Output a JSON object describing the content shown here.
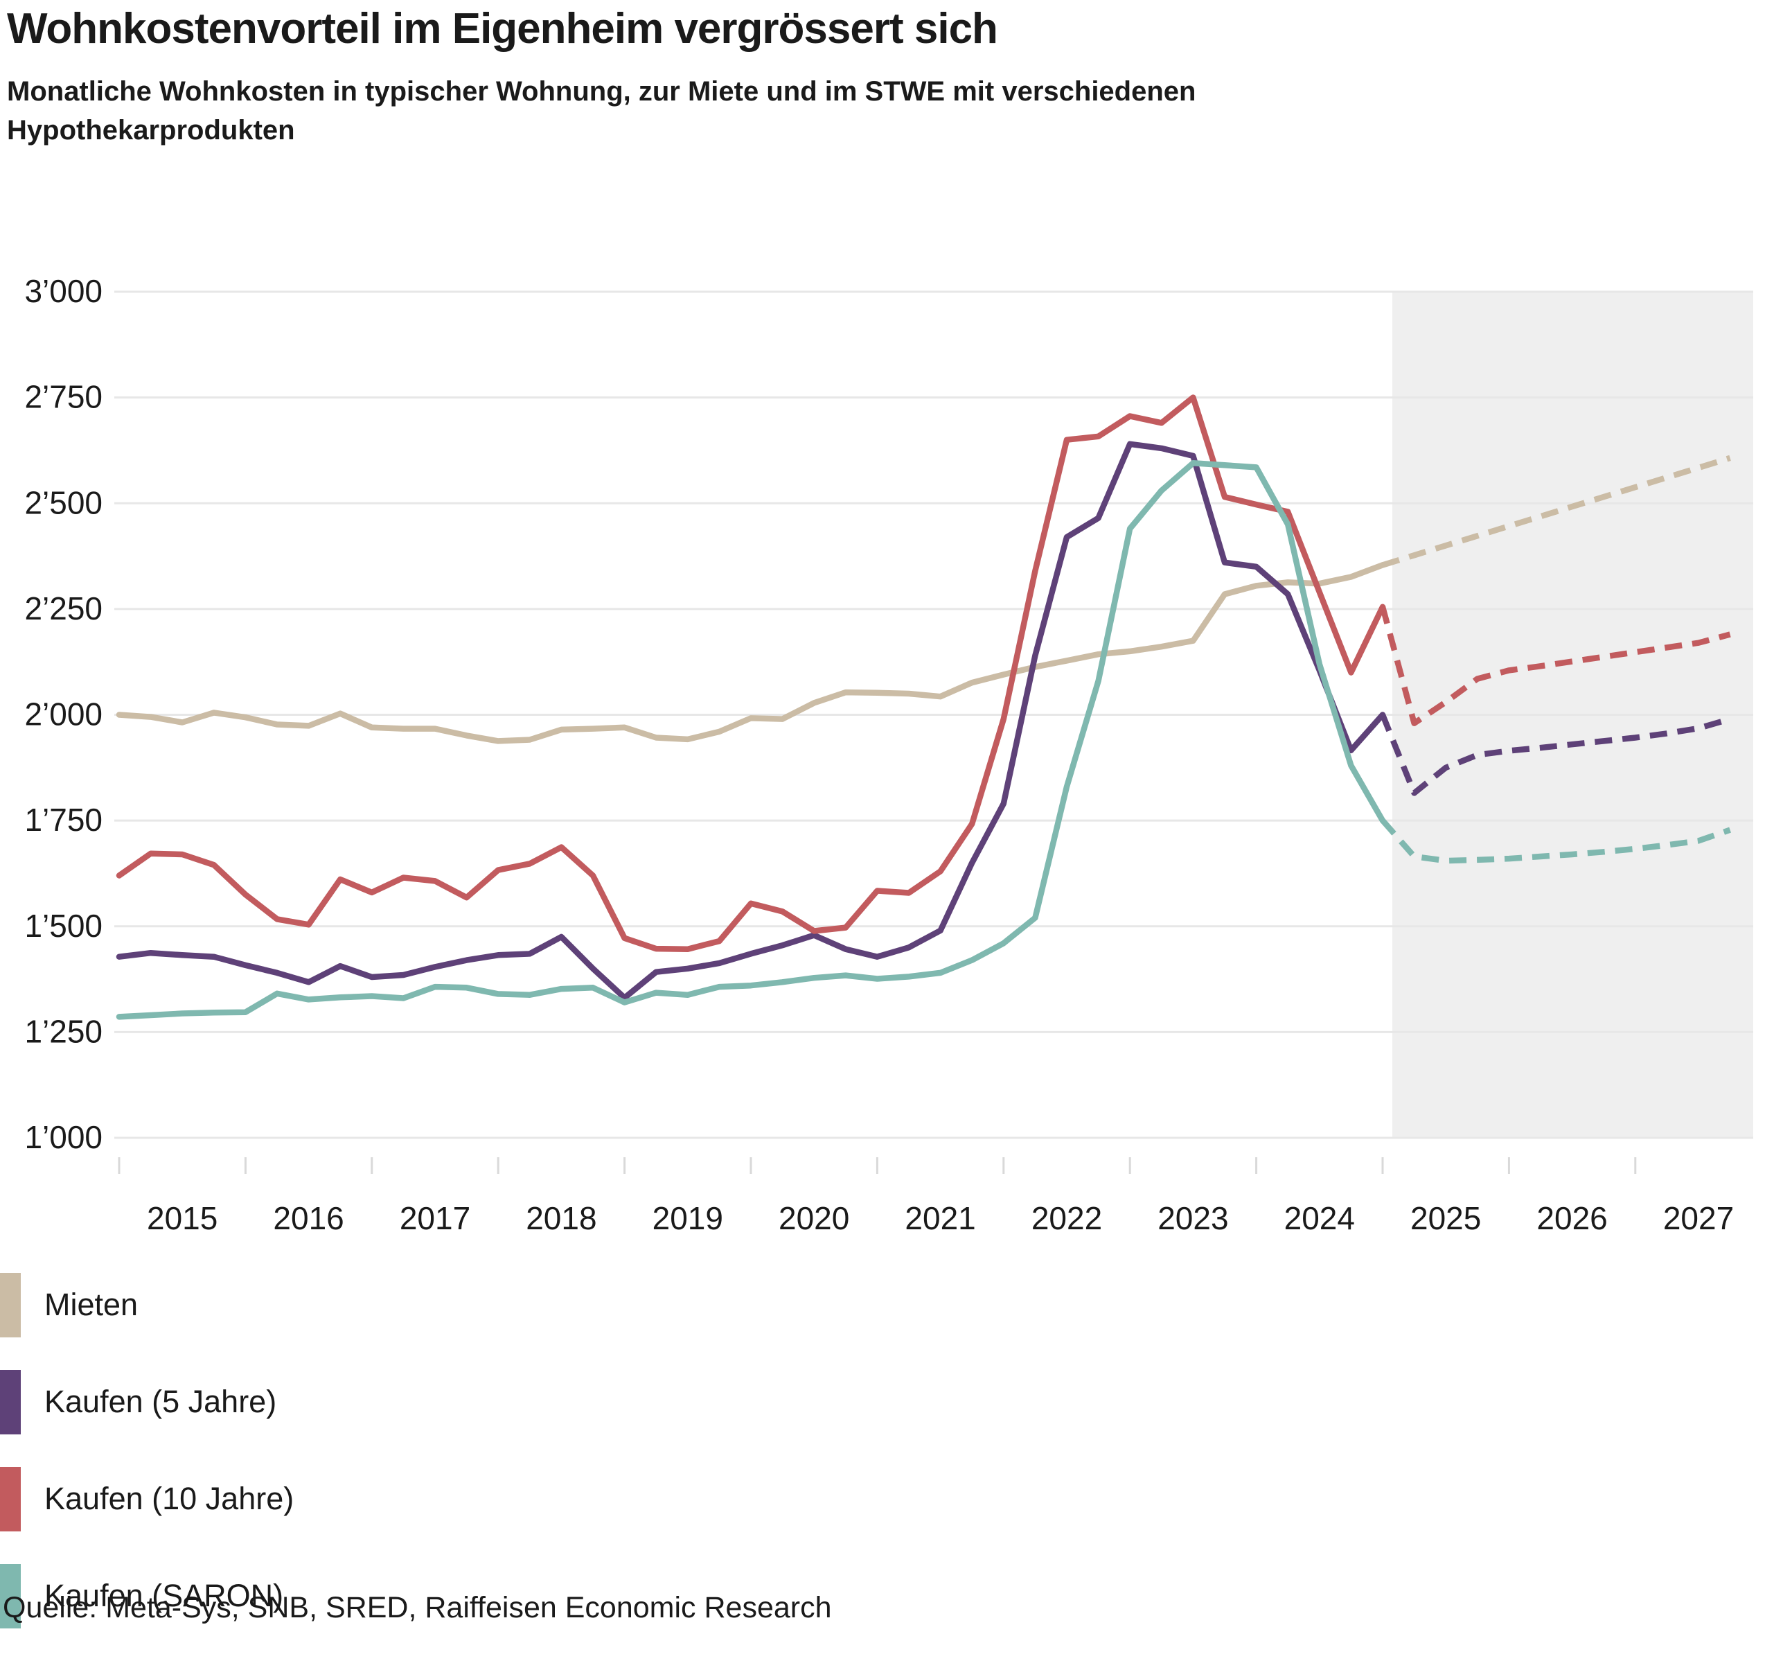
{
  "header": {
    "title": "Wohnkostenvorteil im Eigenheim vergrössert sich",
    "subtitle_line1": "Monatliche Wohnkosten in typischer Wohnung, zur Miete und im STWE mit verschiedenen",
    "subtitle_line2": "Hypothekarprodukten"
  },
  "chart_data": {
    "type": "line",
    "title": "Wohnkostenvorteil im Eigenheim vergrössert sich",
    "xlabel": "",
    "ylabel": "",
    "x_start": 2015,
    "x_step_years": 0.25,
    "ylim": [
      1000,
      3000
    ],
    "grid": true,
    "legend_position": "bottom-left",
    "forecast_band_color": "#efefef",
    "forecast_start_index": 40,
    "yticks": [
      {
        "value": 3000,
        "label": "3’000"
      },
      {
        "value": 2750,
        "label": "2’750"
      },
      {
        "value": 2500,
        "label": "2’500"
      },
      {
        "value": 2250,
        "label": "2’250"
      },
      {
        "value": 2000,
        "label": "2’000"
      },
      {
        "value": 1750,
        "label": "1’750"
      },
      {
        "value": 1500,
        "label": "1’500"
      },
      {
        "value": 1250,
        "label": "1’250"
      },
      {
        "value": 1000,
        "label": "1’000"
      }
    ],
    "xticks": [
      "2015",
      "2016",
      "2017",
      "2018",
      "2019",
      "2020",
      "2021",
      "2022",
      "2023",
      "2024",
      "2025",
      "2026",
      "2027"
    ],
    "series": [
      {
        "name": "Mieten",
        "color": "#cbbca5",
        "values": [
          2000,
          1995,
          1982,
          2005,
          1994,
          1977,
          1974,
          2003,
          1970,
          1967,
          1967,
          1951,
          1938,
          1941,
          1965,
          1967,
          1970,
          1946,
          1942,
          1960,
          1992,
          1990,
          2028,
          2053,
          2052,
          2050,
          2043,
          2076,
          2095,
          2113,
          2128,
          2143,
          2150,
          2161,
          2175,
          2285,
          2305,
          2313,
          2310,
          2326,
          2354,
          2377,
          2400,
          2423,
          2446,
          2469,
          2492,
          2515,
          2538,
          2561,
          2584,
          2607
        ]
      },
      {
        "name": "Kaufen (5 Jahre)",
        "color": "#5e4178",
        "values": [
          1428,
          1437,
          1432,
          1428,
          1408,
          1390,
          1368,
          1406,
          1380,
          1385,
          1404,
          1420,
          1432,
          1435,
          1475,
          1400,
          1331,
          1392,
          1400,
          1413,
          1435,
          1455,
          1479,
          1446,
          1428,
          1450,
          1490,
          1650,
          1790,
          2140,
          2420,
          2465,
          2640,
          2630,
          2612,
          2360,
          2350,
          2285,
          2105,
          1916,
          2000,
          1815,
          1875,
          1905,
          1915,
          1922,
          1930,
          1938,
          1946,
          1956,
          1968,
          1990
        ]
      },
      {
        "name": "Kaufen (10 Jahre)",
        "color": "#c25b5e",
        "values": [
          1620,
          1672,
          1670,
          1645,
          1575,
          1517,
          1504,
          1611,
          1580,
          1615,
          1607,
          1568,
          1633,
          1648,
          1687,
          1620,
          1472,
          1447,
          1446,
          1465,
          1554,
          1535,
          1489,
          1497,
          1584,
          1579,
          1630,
          1742,
          1990,
          2340,
          2650,
          2658,
          2706,
          2690,
          2750,
          2515,
          2497,
          2480,
          2290,
          2100,
          2255,
          1980,
          2030,
          2085,
          2105,
          2115,
          2126,
          2137,
          2148,
          2159,
          2170,
          2190
        ]
      },
      {
        "name": "Kaufen (SARON)",
        "color": "#7fb8af",
        "values": [
          1286,
          1290,
          1294,
          1296,
          1297,
          1341,
          1327,
          1332,
          1335,
          1330,
          1357,
          1355,
          1340,
          1338,
          1352,
          1355,
          1320,
          1343,
          1338,
          1357,
          1360,
          1368,
          1378,
          1384,
          1376,
          1381,
          1390,
          1420,
          1460,
          1520,
          1830,
          2080,
          2440,
          2530,
          2595,
          2590,
          2585,
          2450,
          2120,
          1880,
          1750,
          1665,
          1655,
          1657,
          1660,
          1665,
          1670,
          1676,
          1683,
          1692,
          1702,
          1728
        ]
      }
    ]
  },
  "legend": {
    "items": [
      {
        "label": "Mieten",
        "color": "#cbbca5"
      },
      {
        "label": "Kaufen (5 Jahre)",
        "color": "#5e4178"
      },
      {
        "label": "Kaufen (10 Jahre)",
        "color": "#c25b5e"
      },
      {
        "label": "Kaufen (SARON)",
        "color": "#7fb8af"
      }
    ]
  },
  "source": {
    "text": "Quelle: Meta-Sys, SNB, SRED, Raiffeisen Economic Research"
  }
}
